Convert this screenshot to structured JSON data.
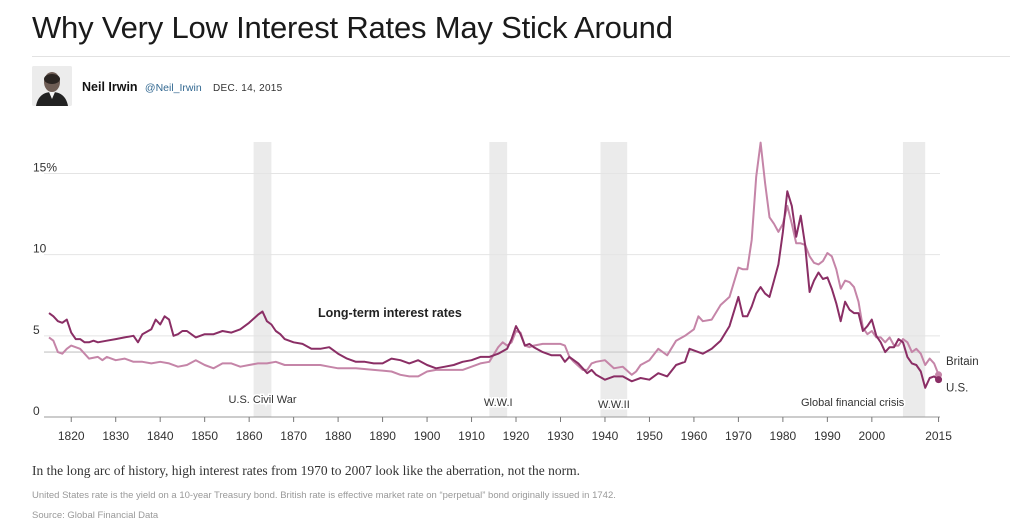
{
  "article": {
    "headline": "Why Very Low Interest Rates May Stick Around",
    "author": "Neil Irwin",
    "handle": "@Neil_Irwin",
    "date": "DEC. 14, 2015",
    "caption": "In the long arc of history, high interest rates from 1970 to 2007 look like the aberration, not the norm.",
    "note": "United States rate is the yield on a 10-year Treasury bond. British rate is effective market rate on “perpetual” bond originally issued in 1742.",
    "source": "Source: Global Financial Data"
  },
  "chart_data": {
    "type": "line",
    "title": "Long-term interest rates",
    "xlabel": "",
    "ylabel": "",
    "xlim": [
      1815,
      2016
    ],
    "ylim": [
      0,
      17
    ],
    "x_ticks": [
      1820,
      1830,
      1840,
      1850,
      1860,
      1870,
      1880,
      1890,
      1900,
      1910,
      1920,
      1930,
      1940,
      1950,
      1960,
      1970,
      1980,
      1990,
      2000,
      2015
    ],
    "y_ticks": [
      {
        "value": 15,
        "label": "15%"
      },
      {
        "value": 10,
        "label": "10"
      },
      {
        "value": 5,
        "label": "5"
      },
      {
        "value": 0,
        "label": "0"
      }
    ],
    "reference_line": 4,
    "periods": [
      {
        "label": "U.S. Civil War",
        "start": 1861,
        "end": 1865
      },
      {
        "label": "W.W.I",
        "start": 1914,
        "end": 1918
      },
      {
        "label": "W.W.II",
        "start": 1939,
        "end": 1945
      },
      {
        "label": "Global financial crisis",
        "start": 2007,
        "end": 2012
      }
    ],
    "series": [
      {
        "name": "Britain",
        "color": "#c585a8",
        "points": [
          [
            1815,
            4.9
          ],
          [
            1816,
            4.7
          ],
          [
            1817,
            4.0
          ],
          [
            1818,
            3.9
          ],
          [
            1819,
            4.2
          ],
          [
            1820,
            4.4
          ],
          [
            1822,
            4.2
          ],
          [
            1824,
            3.6
          ],
          [
            1826,
            3.7
          ],
          [
            1827,
            3.5
          ],
          [
            1828,
            3.7
          ],
          [
            1830,
            3.5
          ],
          [
            1832,
            3.6
          ],
          [
            1834,
            3.4
          ],
          [
            1836,
            3.4
          ],
          [
            1838,
            3.3
          ],
          [
            1840,
            3.4
          ],
          [
            1842,
            3.3
          ],
          [
            1844,
            3.1
          ],
          [
            1846,
            3.2
          ],
          [
            1848,
            3.5
          ],
          [
            1850,
            3.2
          ],
          [
            1852,
            3.0
          ],
          [
            1854,
            3.3
          ],
          [
            1856,
            3.3
          ],
          [
            1858,
            3.1
          ],
          [
            1860,
            3.2
          ],
          [
            1862,
            3.3
          ],
          [
            1864,
            3.3
          ],
          [
            1866,
            3.4
          ],
          [
            1868,
            3.2
          ],
          [
            1870,
            3.2
          ],
          [
            1872,
            3.2
          ],
          [
            1874,
            3.2
          ],
          [
            1876,
            3.2
          ],
          [
            1878,
            3.1
          ],
          [
            1880,
            3.0
          ],
          [
            1884,
            3.0
          ],
          [
            1888,
            2.9
          ],
          [
            1892,
            2.8
          ],
          [
            1894,
            2.6
          ],
          [
            1896,
            2.5
          ],
          [
            1898,
            2.5
          ],
          [
            1900,
            2.8
          ],
          [
            1902,
            2.9
          ],
          [
            1904,
            2.9
          ],
          [
            1906,
            2.9
          ],
          [
            1908,
            2.9
          ],
          [
            1910,
            3.1
          ],
          [
            1912,
            3.3
          ],
          [
            1914,
            3.4
          ],
          [
            1916,
            4.3
          ],
          [
            1917,
            4.6
          ],
          [
            1918,
            4.4
          ],
          [
            1919,
            4.6
          ],
          [
            1920,
            5.3
          ],
          [
            1921,
            5.2
          ],
          [
            1922,
            4.4
          ],
          [
            1923,
            4.3
          ],
          [
            1924,
            4.4
          ],
          [
            1926,
            4.5
          ],
          [
            1928,
            4.5
          ],
          [
            1930,
            4.5
          ],
          [
            1931,
            4.4
          ],
          [
            1932,
            3.7
          ],
          [
            1933,
            3.4
          ],
          [
            1935,
            2.9
          ],
          [
            1936,
            2.9
          ],
          [
            1937,
            3.3
          ],
          [
            1938,
            3.4
          ],
          [
            1940,
            3.5
          ],
          [
            1942,
            3.0
          ],
          [
            1944,
            3.1
          ],
          [
            1946,
            2.6
          ],
          [
            1947,
            2.8
          ],
          [
            1948,
            3.2
          ],
          [
            1950,
            3.5
          ],
          [
            1952,
            4.2
          ],
          [
            1954,
            3.8
          ],
          [
            1956,
            4.7
          ],
          [
            1958,
            5.0
          ],
          [
            1960,
            5.4
          ],
          [
            1961,
            6.2
          ],
          [
            1962,
            5.9
          ],
          [
            1964,
            6.0
          ],
          [
            1966,
            6.9
          ],
          [
            1968,
            7.4
          ],
          [
            1970,
            9.2
          ],
          [
            1971,
            9.1
          ],
          [
            1972,
            9.1
          ],
          [
            1973,
            10.9
          ],
          [
            1974,
            14.8
          ],
          [
            1975,
            16.9
          ],
          [
            1976,
            14.4
          ],
          [
            1977,
            12.3
          ],
          [
            1978,
            11.9
          ],
          [
            1979,
            11.4
          ],
          [
            1980,
            11.9
          ],
          [
            1981,
            13.0
          ],
          [
            1982,
            11.9
          ],
          [
            1983,
            10.7
          ],
          [
            1984,
            10.7
          ],
          [
            1985,
            10.6
          ],
          [
            1986,
            9.9
          ],
          [
            1987,
            9.5
          ],
          [
            1988,
            9.4
          ],
          [
            1989,
            9.6
          ],
          [
            1990,
            10.1
          ],
          [
            1991,
            9.9
          ],
          [
            1992,
            9.1
          ],
          [
            1993,
            7.9
          ],
          [
            1994,
            8.4
          ],
          [
            1995,
            8.3
          ],
          [
            1996,
            8.0
          ],
          [
            1997,
            7.1
          ],
          [
            1998,
            5.5
          ],
          [
            1999,
            5.1
          ],
          [
            2000,
            5.3
          ],
          [
            2001,
            4.9
          ],
          [
            2002,
            4.9
          ],
          [
            2003,
            4.6
          ],
          [
            2004,
            4.9
          ],
          [
            2005,
            4.4
          ],
          [
            2006,
            4.4
          ],
          [
            2007,
            4.8
          ],
          [
            2008,
            4.6
          ],
          [
            2009,
            4.0
          ],
          [
            2010,
            4.2
          ],
          [
            2011,
            3.9
          ],
          [
            2012,
            3.2
          ],
          [
            2013,
            3.6
          ],
          [
            2014,
            3.3
          ],
          [
            2015,
            2.6
          ]
        ]
      },
      {
        "name": "U.S.",
        "color": "#8a2e65",
        "points": [
          [
            1815,
            6.4
          ],
          [
            1816,
            6.2
          ],
          [
            1817,
            5.9
          ],
          [
            1818,
            5.8
          ],
          [
            1819,
            6.0
          ],
          [
            1820,
            5.2
          ],
          [
            1821,
            4.8
          ],
          [
            1822,
            4.8
          ],
          [
            1823,
            4.6
          ],
          [
            1824,
            4.6
          ],
          [
            1825,
            4.7
          ],
          [
            1826,
            4.6
          ],
          [
            1828,
            4.7
          ],
          [
            1830,
            4.8
          ],
          [
            1832,
            4.9
          ],
          [
            1834,
            5.0
          ],
          [
            1835,
            4.6
          ],
          [
            1836,
            5.1
          ],
          [
            1838,
            5.4
          ],
          [
            1839,
            6.0
          ],
          [
            1840,
            5.7
          ],
          [
            1841,
            6.2
          ],
          [
            1842,
            6.0
          ],
          [
            1843,
            5.0
          ],
          [
            1844,
            5.1
          ],
          [
            1845,
            5.3
          ],
          [
            1846,
            5.3
          ],
          [
            1848,
            4.9
          ],
          [
            1850,
            5.1
          ],
          [
            1852,
            5.1
          ],
          [
            1854,
            5.3
          ],
          [
            1856,
            5.2
          ],
          [
            1858,
            5.4
          ],
          [
            1860,
            5.8
          ],
          [
            1862,
            6.3
          ],
          [
            1863,
            6.5
          ],
          [
            1864,
            5.9
          ],
          [
            1865,
            5.7
          ],
          [
            1866,
            5.3
          ],
          [
            1867,
            5.1
          ],
          [
            1868,
            4.8
          ],
          [
            1870,
            4.6
          ],
          [
            1872,
            4.5
          ],
          [
            1874,
            4.2
          ],
          [
            1876,
            4.2
          ],
          [
            1878,
            4.3
          ],
          [
            1880,
            3.9
          ],
          [
            1882,
            3.6
          ],
          [
            1884,
            3.4
          ],
          [
            1886,
            3.4
          ],
          [
            1888,
            3.3
          ],
          [
            1890,
            3.3
          ],
          [
            1892,
            3.6
          ],
          [
            1894,
            3.5
          ],
          [
            1896,
            3.3
          ],
          [
            1898,
            3.5
          ],
          [
            1900,
            3.2
          ],
          [
            1902,
            3.0
          ],
          [
            1904,
            3.1
          ],
          [
            1906,
            3.2
          ],
          [
            1908,
            3.4
          ],
          [
            1910,
            3.5
          ],
          [
            1912,
            3.7
          ],
          [
            1914,
            3.7
          ],
          [
            1916,
            3.9
          ],
          [
            1918,
            4.2
          ],
          [
            1919,
            4.8
          ],
          [
            1920,
            5.6
          ],
          [
            1921,
            5.1
          ],
          [
            1922,
            4.4
          ],
          [
            1923,
            4.5
          ],
          [
            1924,
            4.3
          ],
          [
            1926,
            4.0
          ],
          [
            1928,
            3.8
          ],
          [
            1930,
            3.8
          ],
          [
            1931,
            3.4
          ],
          [
            1932,
            3.7
          ],
          [
            1934,
            3.3
          ],
          [
            1936,
            2.7
          ],
          [
            1937,
            2.9
          ],
          [
            1938,
            2.6
          ],
          [
            1940,
            2.3
          ],
          [
            1942,
            2.5
          ],
          [
            1944,
            2.5
          ],
          [
            1946,
            2.2
          ],
          [
            1948,
            2.4
          ],
          [
            1950,
            2.3
          ],
          [
            1952,
            2.7
          ],
          [
            1954,
            2.5
          ],
          [
            1956,
            3.2
          ],
          [
            1958,
            3.4
          ],
          [
            1959,
            4.2
          ],
          [
            1960,
            4.1
          ],
          [
            1962,
            3.9
          ],
          [
            1964,
            4.2
          ],
          [
            1966,
            4.7
          ],
          [
            1968,
            5.6
          ],
          [
            1970,
            7.4
          ],
          [
            1971,
            6.2
          ],
          [
            1972,
            6.2
          ],
          [
            1973,
            6.8
          ],
          [
            1974,
            7.6
          ],
          [
            1975,
            8.0
          ],
          [
            1976,
            7.6
          ],
          [
            1977,
            7.4
          ],
          [
            1978,
            8.4
          ],
          [
            1979,
            9.4
          ],
          [
            1980,
            11.4
          ],
          [
            1981,
            13.9
          ],
          [
            1982,
            13.0
          ],
          [
            1983,
            11.1
          ],
          [
            1984,
            12.4
          ],
          [
            1985,
            10.6
          ],
          [
            1986,
            7.7
          ],
          [
            1987,
            8.4
          ],
          [
            1988,
            8.9
          ],
          [
            1989,
            8.5
          ],
          [
            1990,
            8.6
          ],
          [
            1991,
            7.9
          ],
          [
            1992,
            7.0
          ],
          [
            1993,
            5.9
          ],
          [
            1994,
            7.1
          ],
          [
            1995,
            6.6
          ],
          [
            1996,
            6.4
          ],
          [
            1997,
            6.4
          ],
          [
            1998,
            5.3
          ],
          [
            1999,
            5.6
          ],
          [
            2000,
            6.0
          ],
          [
            2001,
            5.0
          ],
          [
            2002,
            4.6
          ],
          [
            2003,
            4.0
          ],
          [
            2004,
            4.3
          ],
          [
            2005,
            4.3
          ],
          [
            2006,
            4.8
          ],
          [
            2007,
            4.6
          ],
          [
            2008,
            3.7
          ],
          [
            2009,
            3.3
          ],
          [
            2010,
            3.2
          ],
          [
            2011,
            2.8
          ],
          [
            2012,
            1.8
          ],
          [
            2013,
            2.4
          ],
          [
            2014,
            2.5
          ],
          [
            2015,
            2.3
          ]
        ]
      }
    ]
  },
  "colors": {
    "britain": "#c585a8",
    "us": "#8a2e65",
    "period_shade": "#ebebeb",
    "grid": "#e4e4e4",
    "reference": "#cfcfcf"
  }
}
